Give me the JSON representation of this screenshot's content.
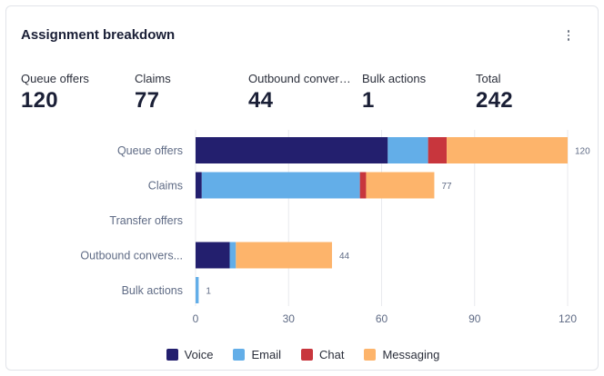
{
  "card": {
    "title": "Assignment breakdown"
  },
  "kpis": [
    {
      "label": "Queue offers",
      "value": "120"
    },
    {
      "label": "Claims",
      "value": "77"
    },
    {
      "label": "Outbound convers...",
      "value": "44"
    },
    {
      "label": "Bulk actions",
      "value": "1"
    },
    {
      "label": "Total",
      "value": "242"
    }
  ],
  "colors": {
    "Voice": "#231f6e",
    "Email": "#63aee8",
    "Chat": "#c8363d",
    "Messaging": "#fdb46b",
    "grid": "#e9eaee",
    "axis_text": "#5f6b85"
  },
  "chart_data": {
    "type": "bar",
    "orientation": "horizontal",
    "stacked": true,
    "categories": [
      "Queue offers",
      "Claims",
      "Transfer offers",
      "Outbound convers...",
      "Bulk actions"
    ],
    "series": [
      {
        "name": "Voice",
        "values": [
          62,
          2,
          0,
          11,
          0
        ]
      },
      {
        "name": "Email",
        "values": [
          13,
          51,
          0,
          2,
          1
        ]
      },
      {
        "name": "Chat",
        "values": [
          6,
          2,
          0,
          0,
          0
        ]
      },
      {
        "name": "Messaging",
        "values": [
          39,
          22,
          0,
          31,
          0
        ]
      }
    ],
    "totals": [
      "120",
      "77",
      "",
      "44",
      "1"
    ],
    "xlim": [
      0,
      120
    ],
    "xticks": [
      "0",
      "30",
      "60",
      "90",
      "120"
    ],
    "grid": true,
    "legend": "bottom"
  }
}
